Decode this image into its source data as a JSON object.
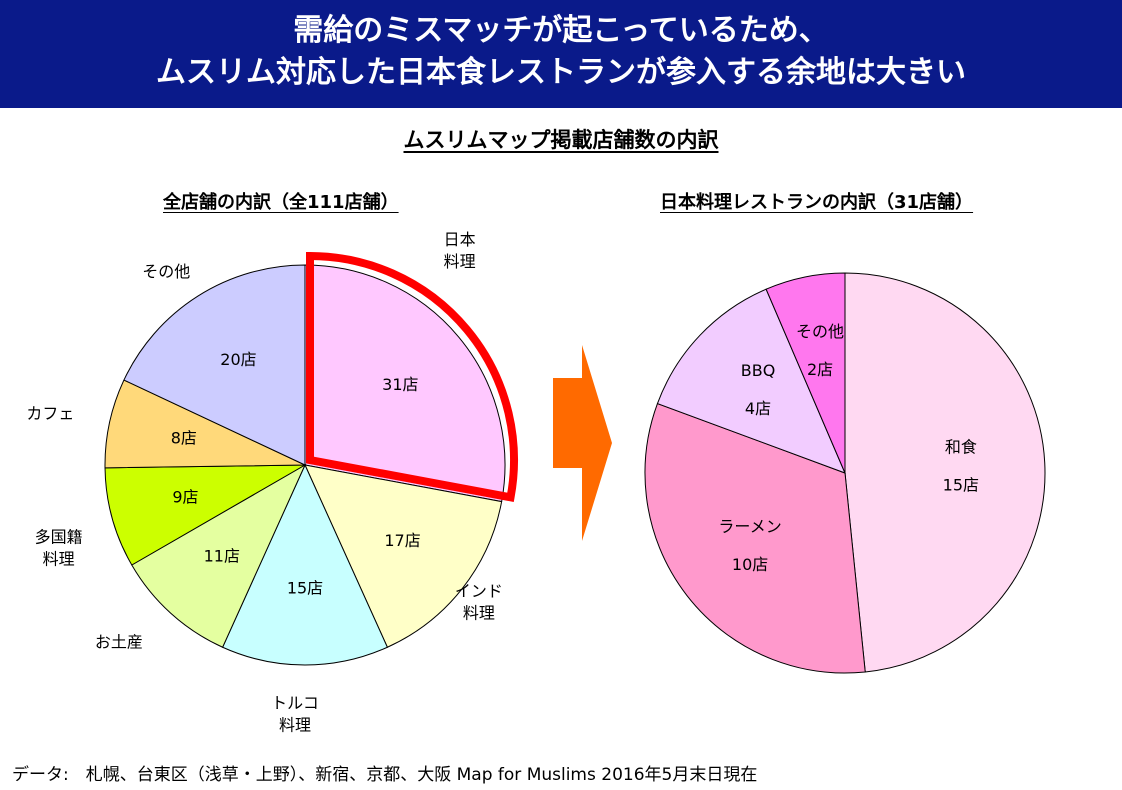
{
  "header": {
    "line1": "需給のミスマッチが起こっているため、",
    "line2": "ムスリム対応した日本食レストランが参入する余地は大きい"
  },
  "subtitle": "ムスリムマップ掲載店舗数の内訳",
  "footer": "データ:　札幌、台東区（浅草・上野）、新宿、京都、大阪 Map for Muslims 2016年5月末日現在",
  "colors": {
    "banner": "#0a1a8a",
    "arrow": "#ff6a00",
    "highlight": "#ff0000"
  },
  "chart_data": [
    {
      "type": "pie",
      "title": "全店舗の内訳（全111店舗）",
      "unit": "店",
      "total": 111,
      "highlighted": "日本料理",
      "slices": [
        {
          "name": "日本料理",
          "value": 31,
          "label": "31店",
          "color": "#ffc8ff"
        },
        {
          "name": "インド料理",
          "value": 17,
          "label": "17店",
          "color": "#ffffc8"
        },
        {
          "name": "トルコ料理",
          "value": 15,
          "label": "15店",
          "color": "#c8ffff"
        },
        {
          "name": "お土産",
          "value": 11,
          "label": "11店",
          "color": "#e4ffa0"
        },
        {
          "name": "多国籍料理",
          "value": 9,
          "label": "9店",
          "color": "#ccff00"
        },
        {
          "name": "カフェ",
          "value": 8,
          "label": "8店",
          "color": "#ffd97a"
        },
        {
          "name": "その他",
          "value": 20,
          "label": "20店",
          "color": "#ccccff"
        }
      ]
    },
    {
      "type": "pie",
      "title": "日本料理レストランの内訳（31店舗）",
      "unit": "店",
      "total": 31,
      "slices": [
        {
          "name": "和食",
          "value": 15,
          "label": "15店",
          "color": "#ffd9f2"
        },
        {
          "name": "ラーメン",
          "value": 10,
          "label": "10店",
          "color": "#ff99cc"
        },
        {
          "name": "BBQ",
          "value": 4,
          "label": "4店",
          "color": "#f2ccff"
        },
        {
          "name": "その他",
          "value": 2,
          "label": "2店",
          "color": "#ff77ee"
        }
      ]
    }
  ]
}
